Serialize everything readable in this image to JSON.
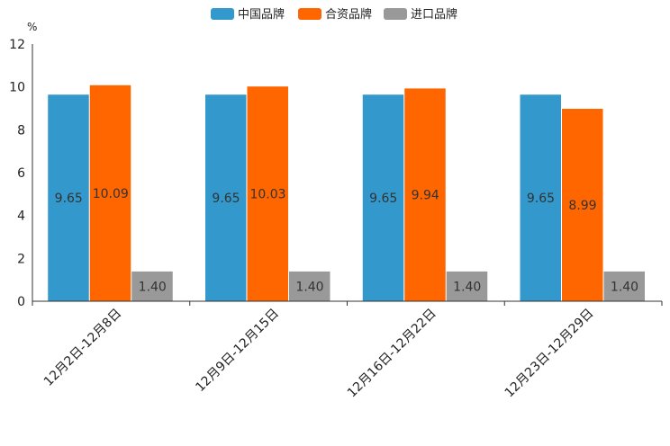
{
  "chart_data": {
    "type": "bar",
    "ylabel": "%",
    "ylim": [
      0,
      12
    ],
    "yticks": [
      0,
      2,
      4,
      6,
      8,
      10,
      12
    ],
    "categories": [
      "12月2日-12月8日",
      "12月9日-12月15日",
      "12月16日-12月22日",
      "12月23日-12月29日"
    ],
    "series": [
      {
        "name": "中国品牌",
        "color": "#3399CC",
        "values": [
          9.65,
          9.65,
          9.65,
          9.65
        ],
        "labels": [
          "9.65",
          "9.65",
          "9.65",
          "9.65"
        ]
      },
      {
        "name": "合资品牌",
        "color": "#FF6600",
        "values": [
          10.09,
          10.03,
          9.94,
          8.99
        ],
        "labels": [
          "10.09",
          "10.03",
          "9.94",
          "8.99"
        ]
      },
      {
        "name": "进口品牌",
        "color": "#999999",
        "values": [
          1.4,
          1.4,
          1.4,
          1.4
        ],
        "labels": [
          "1.40",
          "1.40",
          "1.40",
          "1.40"
        ]
      }
    ],
    "legend_position": "top-center",
    "grid": false
  }
}
